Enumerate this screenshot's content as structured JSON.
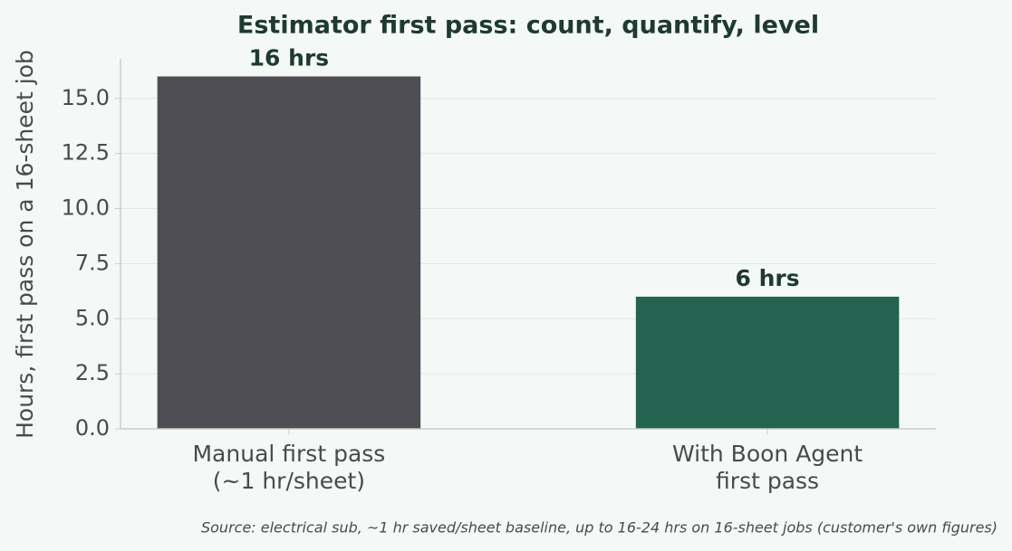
{
  "chart_data": {
    "type": "bar",
    "title": "Estimator first pass: count, quantify, level",
    "y_label": "Hours, first pass on a 16-sheet job",
    "source": "Source: electrical sub, ~1 hr saved/sheet baseline, up to 16-24 hrs on 16-sheet jobs (customer's own figures)",
    "categories": [
      "Manual first pass\n(~1 hr/sheet)",
      "With Boon Agent\nfirst pass"
    ],
    "values": [
      16,
      6
    ],
    "value_labels": [
      "16 hrs",
      "6 hrs"
    ],
    "colors": [
      "#4f4e54",
      "#236350"
    ],
    "ylim": [
      0,
      16.8
    ],
    "yticks": [
      {
        "value": 0,
        "label": "0.0"
      },
      {
        "value": 2.5,
        "label": "2.5"
      },
      {
        "value": 5,
        "label": "5.0"
      },
      {
        "value": 7.5,
        "label": "7.5"
      },
      {
        "value": 10,
        "label": "10.0"
      },
      {
        "value": 12.5,
        "label": "12.5"
      },
      {
        "value": 15,
        "label": "15.0"
      }
    ],
    "grid": true
  }
}
